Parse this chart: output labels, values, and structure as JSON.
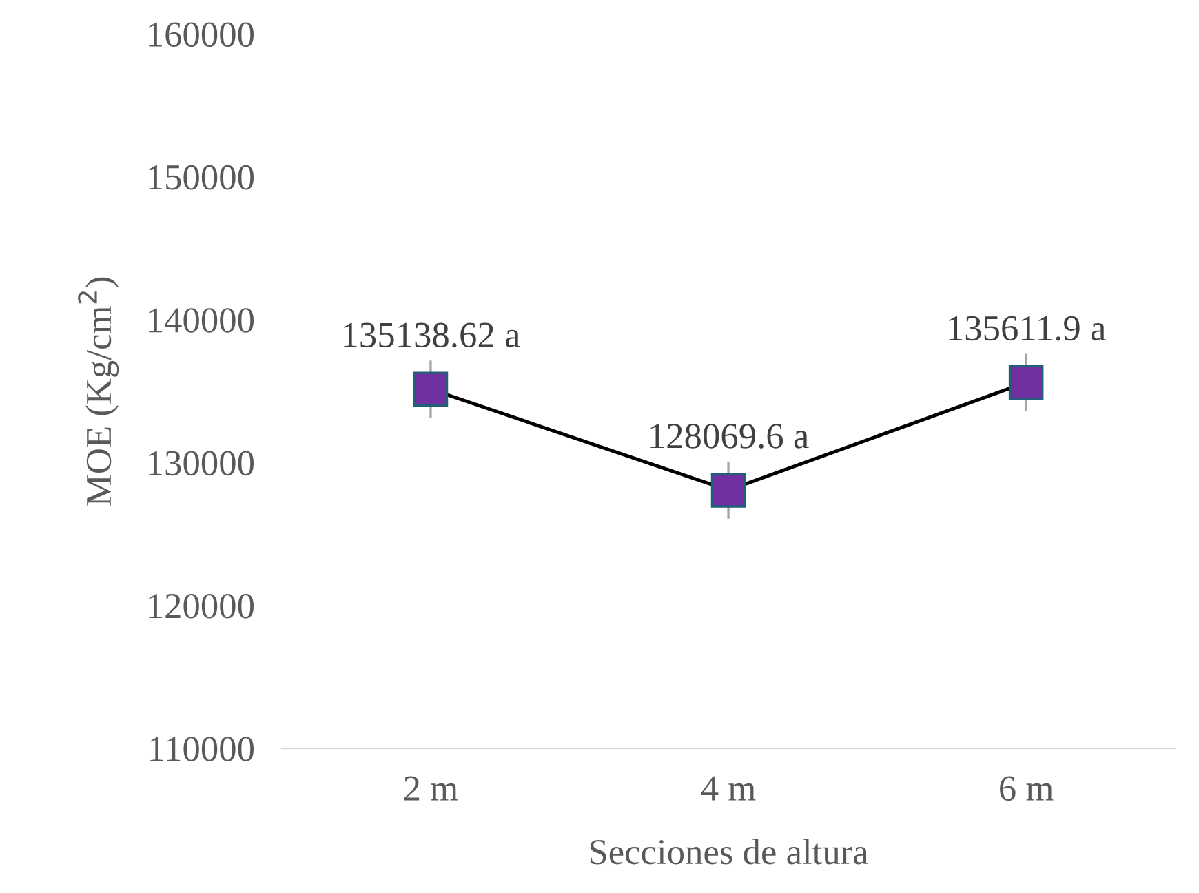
{
  "chart_data": {
    "type": "line",
    "xlabel": "Secciones de altura",
    "ylabel": "MOE (Kg/cm$^{2}$)",
    "categories": [
      "2 m",
      "4 m",
      "6 m"
    ],
    "series": [
      {
        "color": "#7030a0",
        "values": [
          135138.62,
          128069.6,
          135611.9
        ],
        "errors": [
          2000,
          2000,
          2000
        ],
        "value_labels": [
          "135138.62 a",
          "128069.6 a",
          "135611.9 a"
        ]
      }
    ],
    "ylim": [
      110000,
      160000
    ],
    "yticks": [
      110000,
      120000,
      130000,
      140000,
      150000,
      160000
    ],
    "grid": false,
    "marker": "square",
    "line_style": "solid"
  }
}
